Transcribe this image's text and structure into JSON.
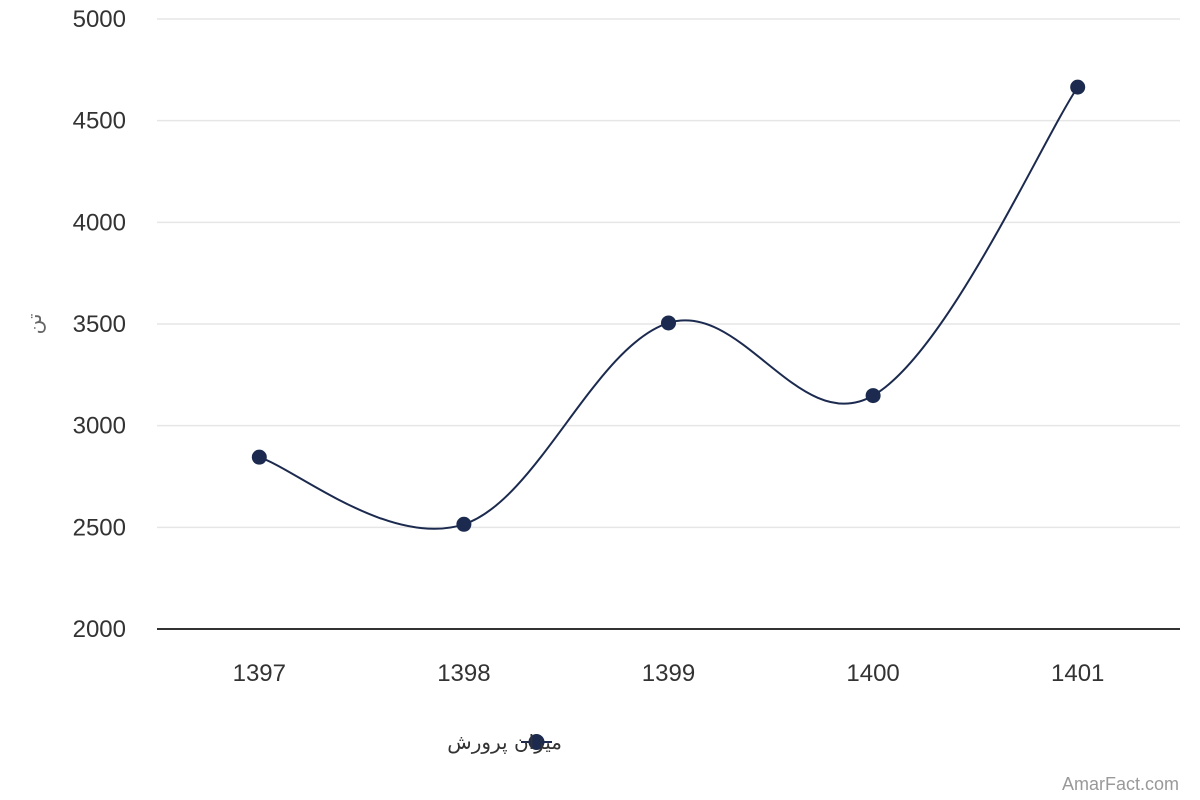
{
  "chart_data": {
    "type": "line",
    "smooth": true,
    "categories": [
      "1397",
      "1398",
      "1399",
      "1400",
      "1401"
    ],
    "series": [
      {
        "name": "میزان پرورش",
        "values": [
          2845,
          2515,
          3505,
          3148,
          4665
        ],
        "color": "#1b2a4e"
      }
    ],
    "ylabel": "تن",
    "ylim": [
      2000,
      5000
    ],
    "yticks": [
      2000,
      2500,
      3000,
      3500,
      4000,
      4500,
      5000
    ],
    "grid": true,
    "legend_position": "bottom-center"
  },
  "colors": {
    "series": "#1b2a4e",
    "grid": "#e6e6e6",
    "axis": "#333333"
  },
  "watermark": "AmarFact.com"
}
